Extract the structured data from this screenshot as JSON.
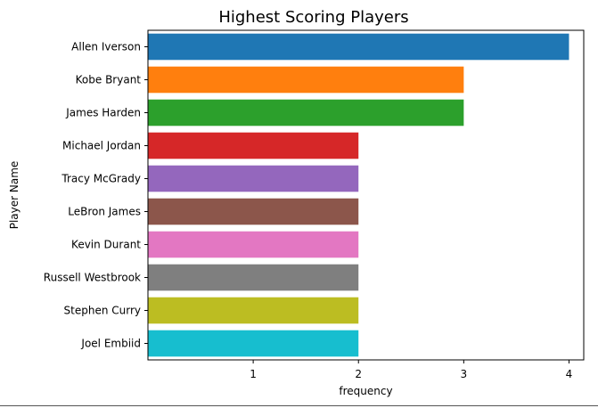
{
  "chart_data": {
    "type": "bar",
    "orientation": "horizontal",
    "title": "Highest Scoring Players",
    "xlabel": "frequency",
    "ylabel": "Player Name",
    "xlim": [
      0,
      4.14
    ],
    "xticks": [
      1,
      2,
      3,
      4
    ],
    "categories": [
      "Allen Iverson",
      "Kobe Bryant",
      "James Harden",
      "Michael Jordan",
      "Tracy McGrady",
      "LeBron James",
      "Kevin Durant",
      "Russell Westbrook",
      "Stephen Curry",
      "Joel Embiid"
    ],
    "values": [
      4,
      3,
      3,
      2,
      2,
      2,
      2,
      2,
      2,
      2
    ],
    "colors": [
      "#1f77b4",
      "#ff7f0e",
      "#2ca02c",
      "#d62728",
      "#9467bd",
      "#8c564b",
      "#e377c2",
      "#7f7f7f",
      "#bcbd22",
      "#17becf"
    ],
    "grid": false,
    "legend": "none"
  }
}
